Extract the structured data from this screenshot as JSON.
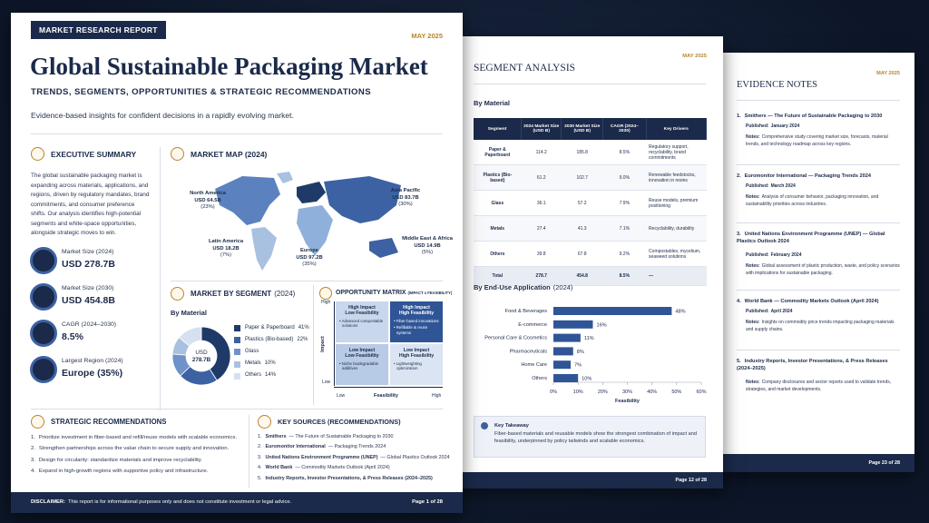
{
  "report": {
    "badge": "MARKET RESEARCH REPORT",
    "date": "MAY 2025",
    "title": "Global Sustainable Packaging Market",
    "subtitle": "TRENDS, SEGMENTS, OPPORTUNITIES & STRATEGIC RECOMMENDATIONS",
    "tagline": "Evidence-based insights for confident decisions in a rapidly evolving market.",
    "executive_summary": {
      "heading": "EXECUTIVE SUMMARY",
      "text": "The global sustainable packaging market is expanding across materials, applications, and regions, driven by regulatory mandates, brand commitments, and consumer preference shifts. Our analysis identifies high-potential segments and white-space opportunities, alongside strategic moves to win.",
      "kpis": [
        {
          "label": "Market Size (2024)",
          "value": "USD 278.7B"
        },
        {
          "label": "Market Size (2030)",
          "value": "USD 454.8B"
        },
        {
          "label": "CAGR (2024–2030)",
          "value": "8.5%"
        },
        {
          "label": "Largest Region (2024)",
          "value": "Europe (35%)"
        }
      ]
    },
    "market_map": {
      "heading": "MARKET MAP (2024)",
      "regions": [
        {
          "name": "North America",
          "value": "USD 64.5B",
          "share": "(23%)"
        },
        {
          "name": "Asia Pacific",
          "value": "USD 83.7B",
          "share": "(30%)"
        },
        {
          "name": "Latin America",
          "value": "USD 18.2B",
          "share": "(7%)"
        },
        {
          "name": "Europe",
          "value": "USD 97.2B",
          "share": "(35%)"
        },
        {
          "name": "Middle East & Africa",
          "value": "USD 14.9B",
          "share": "(5%)"
        }
      ]
    },
    "segment": {
      "heading": "MARKET BY SEGMENT",
      "heading_suffix": "(2024)",
      "subheading": "By Material",
      "center": [
        "USD",
        "278.7B"
      ],
      "chart_data": {
        "type": "pie",
        "categories": [
          "Paper & Paperboard",
          "Plastics (Bio-based)",
          "Glass",
          "Metals",
          "Others"
        ],
        "values": [
          41,
          22,
          13,
          10,
          14
        ],
        "value_labels": [
          "41%",
          "22%",
          null,
          "10%",
          "14%"
        ],
        "colors": [
          "#1f3a68",
          "#3c62a3",
          "#6f93c8",
          "#a9c1e0",
          "#d5e1f0"
        ]
      }
    },
    "matrix": {
      "heading": "OPPORTUNITY MATRIX",
      "heading_suffix": "(IMPACT x FEASIBILITY)",
      "y_axis": {
        "high": "High",
        "label": "Impact",
        "low": "Low"
      },
      "x_axis": {
        "low": "Low",
        "label": "Feasibility",
        "high": "High"
      },
      "quadrants": [
        {
          "title": [
            "High Impact",
            "Low Feasibility"
          ],
          "items": [
            "Advanced compostable solutions"
          ]
        },
        {
          "title": [
            "High Impact",
            "High Feasibility"
          ],
          "items": [
            "Fiber-based innovations",
            "Refillable & reuse systems"
          ]
        },
        {
          "title": [
            "Low Impact",
            "Low Feasibility"
          ],
          "items": [
            "Niche biodegradable additives"
          ]
        },
        {
          "title": [
            "Low Impact",
            "High Feasibility"
          ],
          "items": [
            "Lightweighting optimization"
          ]
        }
      ]
    },
    "recommendations": {
      "heading": "STRATEGIC RECOMMENDATIONS",
      "items": [
        {
          "n": "1.",
          "text": "Prioritize investment in fiber-based and refill/reuse models with scalable economics."
        },
        {
          "n": "2.",
          "text": "Strengthen partnerships across the value chain to secure supply and innovation."
        },
        {
          "n": "3.",
          "text": "Design for circularity: standardize materials and improve recyclability."
        },
        {
          "n": "4.",
          "text": "Expand in high-growth regions with supportive policy and infrastructure."
        }
      ]
    },
    "sources": {
      "heading": "KEY SOURCES (RECOMMENDATIONS)",
      "items": [
        {
          "n": "1.",
          "org": "Smithers",
          "title": "— The Future of Sustainable Packaging to 2030"
        },
        {
          "n": "2.",
          "org": "Euromonitor International",
          "title": "— Packaging Trends 2024"
        },
        {
          "n": "3.",
          "org": "United Nations Environment Programme (UNEP)",
          "title": "— Global Plastics Outlook 2024"
        },
        {
          "n": "4.",
          "org": "World Bank",
          "title": "— Commodity Markets Outlook (April 2024)"
        },
        {
          "n": "5.",
          "org": "Industry Reports, Investor Presentations, & Press Releases (2024–2025)"
        }
      ]
    },
    "footer": {
      "label": "DISCLAIMER:",
      "text": "This report is for informational purposes only and does not constitute investment or legal advice.",
      "page": "Page 1 of 28"
    }
  },
  "segment_page": {
    "date": "MAY 2025",
    "heading": "SEGMENT ANALYSIS",
    "table_heading": "By Material",
    "table": {
      "headers": [
        "Segment",
        "2024 Market Size (USD B)",
        "2030 Market Size (USD B)",
        "CAGR (2024–2030)",
        "Key Drivers"
      ],
      "rows": [
        [
          "Paper & Paperboard",
          114.2,
          185.8,
          "8.5%",
          "Regulatory support, recyclability, brand commitments"
        ],
        [
          "Plastics (Bio-based)",
          61.2,
          102.7,
          "9.0%",
          "Renewable feedstocks, innovation in resins"
        ],
        [
          "Glass",
          36.1,
          57.2,
          "7.9%",
          "Reuse models, premium positioning"
        ],
        [
          "Metals",
          27.4,
          41.3,
          "7.1%",
          "Recyclability, durability"
        ],
        [
          "Others",
          39.8,
          67.8,
          "9.2%",
          "Compostables, mycelium, seaweed solutions"
        ],
        [
          "Total",
          278.7,
          454.8,
          "8.5%",
          "—"
        ]
      ]
    },
    "end_use": {
      "heading": "By End-Use Application",
      "heading_suffix": "(2024)",
      "chart_data": {
        "type": "bar",
        "categories": [
          "Food & Beverages",
          "E-commerce",
          "Personal Care & Cosmetics",
          "Pharmaceuticals",
          "Home Care",
          "Others"
        ],
        "values": [
          48,
          16,
          11,
          8,
          7,
          10
        ],
        "value_labels": [
          "48%",
          "16%",
          "11%",
          "8%",
          "7%",
          "10%"
        ],
        "color": "#2f5597",
        "xlim": [
          0,
          60
        ],
        "xticks": [
          {
            "value": 0,
            "label": "0%"
          },
          {
            "value": 10,
            "label": "10%"
          },
          {
            "value": 20,
            "label": "20%"
          },
          {
            "value": 30,
            "label": "30%"
          },
          {
            "value": 40,
            "label": "40%"
          },
          {
            "value": 50,
            "label": "50%"
          },
          {
            "value": 60,
            "label": "60%"
          }
        ],
        "xlabel": "Feasibility"
      }
    },
    "takeaway": {
      "heading": "Key Takeaway",
      "text": "Fiber-based materials and reusable models show the strongest combination of impact and feasibility, underpinned by policy tailwinds and scalable economics."
    },
    "page": "Page 12 of 28"
  },
  "evidence_page": {
    "date": "MAY 2025",
    "heading": "EVIDENCE NOTES",
    "published_label": "Published:",
    "notes_label": "Notes:",
    "notes": [
      {
        "n": "1.",
        "title": "Smithers — The Future of Sustainable Packaging to 2030",
        "published": "January 2024",
        "notes": "Comprehensive study covering market size, forecasts, material trends, and technology roadmap across key regions."
      },
      {
        "n": "2.",
        "title": "Euromonitor International — Packaging Trends 2024",
        "published": "March 2024",
        "notes": "Analysis of consumer behavior, packaging innovation, and sustainability priorities across industries."
      },
      {
        "n": "3.",
        "title": "United Nations Environment Programme (UNEP) — Global Plastics Outlook 2024",
        "published": "February 2024",
        "notes": "Global assessment of plastic production, waste, and policy scenarios with implications for sustainable packaging."
      },
      {
        "n": "4.",
        "title": "World Bank — Commodity Markets Outlook (April 2024)",
        "published": "April 2024",
        "notes": "Insights on commodity price trends impacting packaging materials and supply chains."
      },
      {
        "n": "5.",
        "title": "Industry Reports, Investor Presentations, & Press Releases (2024–2025)",
        "notes": "Company disclosures and sector reports used to validate trends, strategies, and market developments."
      }
    ],
    "page": "Page 23 of 28"
  }
}
